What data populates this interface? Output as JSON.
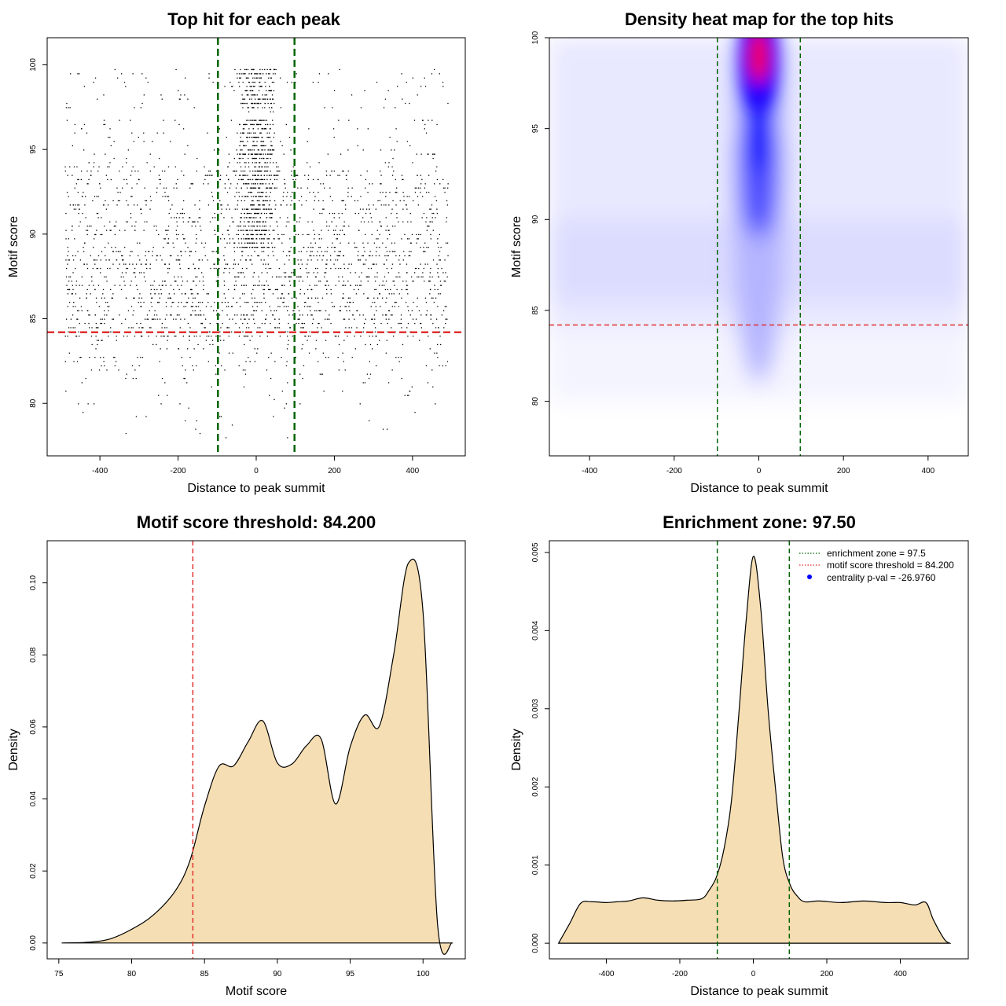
{
  "chart_data": [
    {
      "type": "scatter",
      "title": "Top hit for each peak",
      "xlabel": "Distance to peak summit",
      "ylabel": "Motif score",
      "xlim": [
        -535,
        535
      ],
      "ylim": [
        76.9,
        101.6
      ],
      "xticks": [
        -400,
        -200,
        0,
        200,
        400
      ],
      "yticks": [
        80,
        85,
        90,
        95,
        100
      ],
      "vlines": [
        -98,
        98
      ],
      "hline": 84.2,
      "colors": {
        "points": "#000000",
        "vline": "#006400",
        "hline": "#e03030"
      }
    },
    {
      "type": "heatmap",
      "title": "Density heat map for the top hits",
      "xlabel": "Distance to peak summit",
      "ylabel": "Motif score",
      "xlim": [
        -495,
        495
      ],
      "ylim": [
        77,
        100
      ],
      "xticks": [
        -400,
        -200,
        0,
        200,
        400
      ],
      "yticks": [
        80,
        85,
        90,
        95,
        100
      ],
      "vlines": [
        -98,
        98
      ],
      "hline": 84.2,
      "colors": {
        "low": "#ffffff",
        "mid": "#0000ff",
        "high": "#ff0000",
        "vline": "#006400",
        "hline": "#e03030"
      }
    },
    {
      "type": "area",
      "title": "Motif score threshold: 84.200",
      "xlabel": "Motif score",
      "ylabel": "Density",
      "xlim": [
        74.2,
        102.9
      ],
      "ylim": [
        -0.0044,
        0.1117
      ],
      "xticks": [
        75,
        80,
        85,
        90,
        95,
        100
      ],
      "yticks": [
        "0.00",
        "0.02",
        "0.04",
        "0.06",
        "0.08",
        "0.10"
      ],
      "vline": 84.2,
      "x": [
        75.2,
        77,
        78.5,
        80,
        81.5,
        83,
        84,
        85,
        86,
        87,
        88,
        89,
        90,
        91,
        92,
        93,
        94,
        95,
        96,
        97,
        98,
        99,
        100,
        101,
        102
      ],
      "y": [
        0,
        0.0002,
        0.0011,
        0.0038,
        0.0078,
        0.0145,
        0.0229,
        0.038,
        0.0491,
        0.0492,
        0.0559,
        0.0617,
        0.05,
        0.0497,
        0.0548,
        0.0567,
        0.0386,
        0.0545,
        0.0633,
        0.0602,
        0.0804,
        0.1055,
        0.092,
        0.005,
        0
      ],
      "colors": {
        "fill": "#f5deb3",
        "line": "#000000",
        "vline": "#e03030"
      }
    },
    {
      "type": "area",
      "title": "Enrichment zone: 97.50",
      "xlabel": "Distance to peak summit",
      "ylabel": "Density",
      "xlim": [
        -555,
        585
      ],
      "ylim": [
        -0.0002,
        0.00515
      ],
      "xticks": [
        -400,
        -200,
        0,
        200,
        400
      ],
      "yticks": [
        "0.000",
        "0.001",
        "0.002",
        "0.003",
        "0.004",
        "0.005"
      ],
      "vlines": [
        -98,
        98
      ],
      "x": [
        -530,
        -500,
        -470,
        -440,
        -400,
        -370,
        -340,
        -300,
        -260,
        -220,
        -180,
        -140,
        -120,
        -100,
        -80,
        -60,
        -40,
        -20,
        0,
        20,
        40,
        60,
        80,
        100,
        120,
        140,
        180,
        240,
        300,
        360,
        400,
        440,
        470,
        490,
        520,
        535
      ],
      "y": [
        0,
        0.00025,
        0.00051,
        0.00053,
        0.00052,
        0.00053,
        0.00054,
        0.00058,
        0.00055,
        0.00054,
        0.00055,
        0.00057,
        0.00068,
        0.00085,
        0.0012,
        0.0018,
        0.0029,
        0.0041,
        0.00495,
        0.0043,
        0.003,
        0.002,
        0.0011,
        0.00075,
        0.0006,
        0.00053,
        0.00054,
        0.00052,
        0.00054,
        0.00052,
        0.00052,
        0.00049,
        0.00052,
        0.0003,
        5e-05,
        0
      ],
      "legend": {
        "position": "top-right",
        "entries": [
          {
            "label": "enrichment zone = 97.5",
            "symbol": "dotted-line",
            "color": "#006400"
          },
          {
            "label": "motif score threshold = 84.200",
            "symbol": "dotted-line",
            "color": "#e03030"
          },
          {
            "label": "centrality p-val = -26.9760",
            "symbol": "dot",
            "color": "#0000ff"
          }
        ]
      },
      "colors": {
        "fill": "#f5deb3",
        "line": "#000000",
        "vline": "#006400"
      }
    }
  ]
}
